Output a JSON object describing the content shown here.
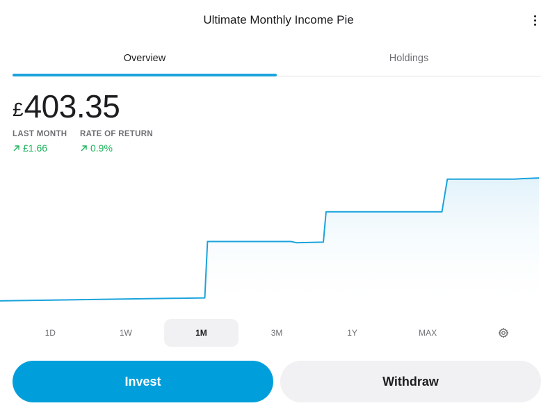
{
  "header": {
    "title": "Ultimate Monthly Income Pie",
    "menu_icon": "more-vertical-icon"
  },
  "tabs": [
    {
      "label": "Overview",
      "active": true
    },
    {
      "label": "Holdings",
      "active": false
    }
  ],
  "balance": {
    "currency": "£",
    "amount": "403.35"
  },
  "stats": {
    "last_month": {
      "label": "LAST MONTH",
      "value": "£1.66",
      "icon": "arrow-up-right-icon"
    },
    "rate_of_return": {
      "label": "RATE OF RETURN",
      "value": "0.9%",
      "icon": "arrow-up-right-icon"
    }
  },
  "colors": {
    "accent": "#009fdc",
    "line": "#1aa3dc",
    "positive": "#1db35a"
  },
  "chart_data": {
    "type": "line",
    "x": [
      0,
      0.38,
      0.385,
      0.54,
      0.55,
      0.6,
      0.605,
      0.82,
      0.83,
      0.955,
      0.97,
      1.0
    ],
    "values": [
      100,
      100.5,
      110,
      110,
      109.8,
      109.9,
      115,
      115,
      120.5,
      120.5,
      120.6,
      120.7
    ],
    "ylim": [
      98,
      122
    ],
    "grid": false
  },
  "ranges": [
    {
      "label": "1D",
      "active": false
    },
    {
      "label": "1W",
      "active": false
    },
    {
      "label": "1M",
      "active": true
    },
    {
      "label": "3M",
      "active": false
    },
    {
      "label": "1Y",
      "active": false
    },
    {
      "label": "MAX",
      "active": false
    }
  ],
  "range_settings_icon": "gear-icon",
  "actions": {
    "invest_label": "Invest",
    "withdraw_label": "Withdraw"
  }
}
